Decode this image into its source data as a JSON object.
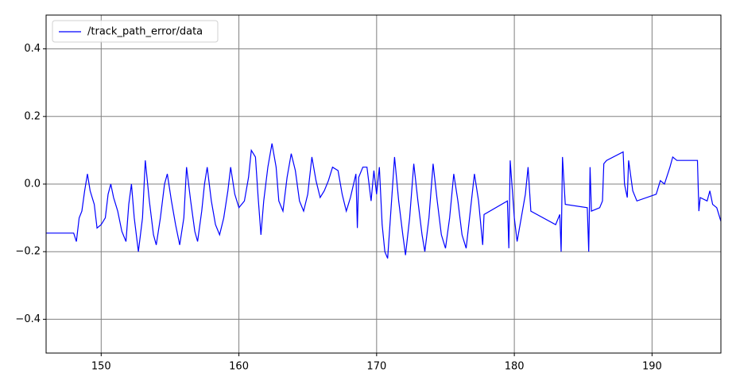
{
  "chart_data": {
    "type": "line",
    "x": [
      146,
      148,
      148.2,
      148.4,
      148.6,
      148.8,
      149.0,
      149.2,
      149.5,
      149.7,
      150.0,
      150.3,
      150.5,
      150.7,
      150.9,
      151.2,
      151.5,
      151.8,
      152.0,
      152.2,
      152.4,
      152.7,
      153.0,
      153.2,
      153.5,
      153.8,
      154.0,
      154.3,
      154.6,
      154.8,
      155.1,
      155.4,
      155.7,
      156.0,
      156.2,
      156.5,
      156.8,
      157.0,
      157.3,
      157.5,
      157.7,
      158.0,
      158.3,
      158.6,
      158.9,
      159.2,
      159.4,
      159.7,
      160.0,
      160.4,
      160.7,
      160.9,
      161.2,
      161.4,
      161.6,
      161.8,
      162.1,
      162.4,
      162.7,
      162.9,
      163.2,
      163.5,
      163.8,
      164.1,
      164.4,
      164.7,
      165.0,
      165.3,
      165.6,
      165.9,
      166.2,
      166.5,
      166.8,
      167.2,
      167.5,
      167.8,
      168.1,
      168.5,
      168.6,
      168.7,
      169.0,
      169.3,
      169.6,
      169.8,
      170.0,
      170.2,
      170.4,
      170.6,
      170.8,
      171.0,
      171.3,
      171.6,
      171.9,
      172.1,
      172.4,
      172.7,
      173.0,
      173.3,
      173.5,
      173.8,
      174.1,
      174.4,
      174.7,
      175.0,
      175.3,
      175.6,
      175.9,
      176.2,
      176.5,
      176.8,
      177.1,
      177.4,
      177.7,
      177.8,
      179.5,
      179.6,
      179.7,
      180.0,
      180.2,
      180.5,
      180.8,
      181.0,
      181.2,
      183.0,
      183.3,
      183.4,
      183.5,
      183.7,
      185.3,
      185.4,
      185.5,
      185.6,
      186.2,
      186.4,
      186.5,
      186.7,
      187.9,
      188.0,
      188.2,
      188.3,
      188.6,
      188.9,
      190.3,
      190.6,
      190.9,
      191.3,
      191.5,
      191.8,
      193.3,
      193.4,
      193.5,
      194.0,
      194.2,
      194.4,
      194.7,
      195.0
    ],
    "series": [
      {
        "name": "/track_path_error/data",
        "color": "#0000ff",
        "values": [
          -0.145,
          -0.145,
          -0.17,
          -0.1,
          -0.08,
          -0.02,
          0.03,
          -0.02,
          -0.06,
          -0.13,
          -0.12,
          -0.1,
          -0.03,
          0.0,
          -0.04,
          -0.08,
          -0.14,
          -0.17,
          -0.06,
          0.0,
          -0.1,
          -0.2,
          -0.1,
          0.07,
          -0.05,
          -0.15,
          -0.18,
          -0.1,
          0.0,
          0.03,
          -0.05,
          -0.12,
          -0.18,
          -0.1,
          0.05,
          -0.05,
          -0.14,
          -0.17,
          -0.08,
          0.0,
          0.05,
          -0.05,
          -0.12,
          -0.15,
          -0.1,
          -0.02,
          0.05,
          -0.03,
          -0.07,
          -0.05,
          0.02,
          0.1,
          0.08,
          -0.04,
          -0.15,
          -0.05,
          0.05,
          0.12,
          0.05,
          -0.05,
          -0.08,
          0.02,
          0.09,
          0.04,
          -0.05,
          -0.08,
          -0.03,
          0.08,
          0.01,
          -0.04,
          -0.02,
          0.01,
          0.05,
          0.04,
          -0.03,
          -0.08,
          -0.04,
          0.03,
          -0.13,
          0.02,
          0.05,
          0.05,
          -0.05,
          0.04,
          -0.03,
          0.05,
          -0.12,
          -0.2,
          -0.22,
          -0.1,
          0.08,
          -0.05,
          -0.15,
          -0.21,
          -0.1,
          0.06,
          -0.05,
          -0.15,
          -0.2,
          -0.1,
          0.06,
          -0.05,
          -0.15,
          -0.19,
          -0.1,
          0.03,
          -0.05,
          -0.15,
          -0.19,
          -0.08,
          0.03,
          -0.05,
          -0.18,
          -0.09,
          -0.05,
          -0.19,
          0.07,
          -0.1,
          -0.17,
          -0.1,
          -0.03,
          0.05,
          -0.08,
          -0.12,
          -0.09,
          -0.2,
          0.08,
          -0.06,
          -0.07,
          -0.2,
          0.05,
          -0.08,
          -0.07,
          -0.05,
          0.06,
          0.07,
          0.095,
          0.0,
          -0.04,
          0.07,
          -0.02,
          -0.05,
          -0.03,
          0.01,
          0.0,
          0.05,
          0.08,
          0.07,
          0.07,
          -0.08,
          -0.04,
          -0.05,
          -0.02,
          -0.06,
          -0.07,
          -0.11
        ]
      }
    ],
    "xlim": [
      146,
      195
    ],
    "ylim": [
      -0.5,
      0.5
    ],
    "xticks": [
      150,
      160,
      170,
      180,
      190
    ],
    "yticks": [
      {
        "value": -0.4,
        "label": "−0.4"
      },
      {
        "value": -0.2,
        "label": "−0.2"
      },
      {
        "value": 0,
        "label": "0.0"
      },
      {
        "value": 0.2,
        "label": "0.2"
      },
      {
        "value": 0.4,
        "label": "0.4"
      }
    ],
    "grid": true,
    "legend": "upper-left"
  }
}
